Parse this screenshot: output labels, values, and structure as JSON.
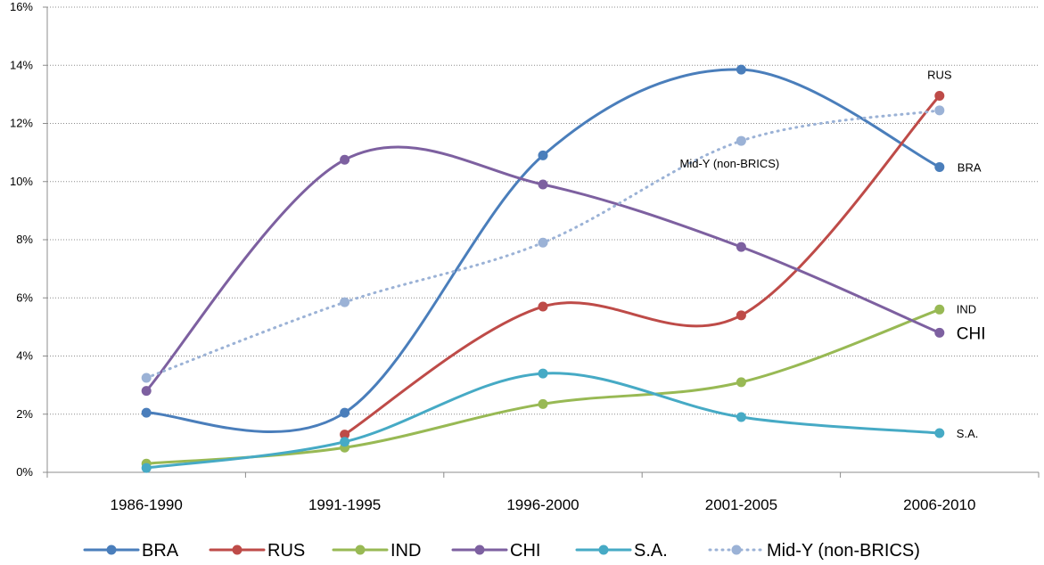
{
  "chart_data": {
    "type": "line",
    "categories": [
      "1986-1990",
      "1991-1995",
      "1996-2000",
      "2001-2005",
      "2006-2010"
    ],
    "ylim": [
      0,
      16
    ],
    "yticks": [
      "0%",
      "2%",
      "4%",
      "6%",
      "8%",
      "10%",
      "12%",
      "14%",
      "16%"
    ],
    "grid": true,
    "legend_position": "bottom",
    "series": [
      {
        "name": "BRA",
        "color": "#4a7ebb",
        "dashed": false,
        "values": [
          2.05,
          2.05,
          10.9,
          13.85,
          10.5
        ]
      },
      {
        "name": "RUS",
        "color": "#be4b48",
        "dashed": false,
        "values": [
          null,
          1.3,
          5.7,
          5.4,
          12.95
        ]
      },
      {
        "name": "IND",
        "color": "#98b954",
        "dashed": false,
        "values": [
          0.3,
          0.85,
          2.35,
          3.1,
          5.6
        ]
      },
      {
        "name": "CHI",
        "color": "#7d60a0",
        "dashed": false,
        "values": [
          2.8,
          10.75,
          9.9,
          7.75,
          4.8
        ]
      },
      {
        "name": "S.A.",
        "color": "#46aac5",
        "dashed": false,
        "values": [
          0.15,
          1.05,
          3.4,
          1.9,
          1.35
        ]
      },
      {
        "name": "Mid-Y (non-BRICS)",
        "color": "#9bb2d6",
        "dashed": true,
        "values": [
          3.25,
          5.85,
          7.9,
          11.4,
          12.45
        ]
      }
    ],
    "annotations": [
      {
        "text": "RUS",
        "series": "RUS",
        "size": 13
      },
      {
        "text": "BRA",
        "series": "BRA",
        "size": 13
      },
      {
        "text": "Mid-Y (non-BRICS)",
        "series": "Mid-Y (non-BRICS)",
        "size": 13
      },
      {
        "text": "IND",
        "series": "IND",
        "size": 13
      },
      {
        "text": "CHI",
        "series": "CHI",
        "size": 19
      },
      {
        "text": "S.A.",
        "series": "S.A.",
        "size": 13
      }
    ]
  }
}
